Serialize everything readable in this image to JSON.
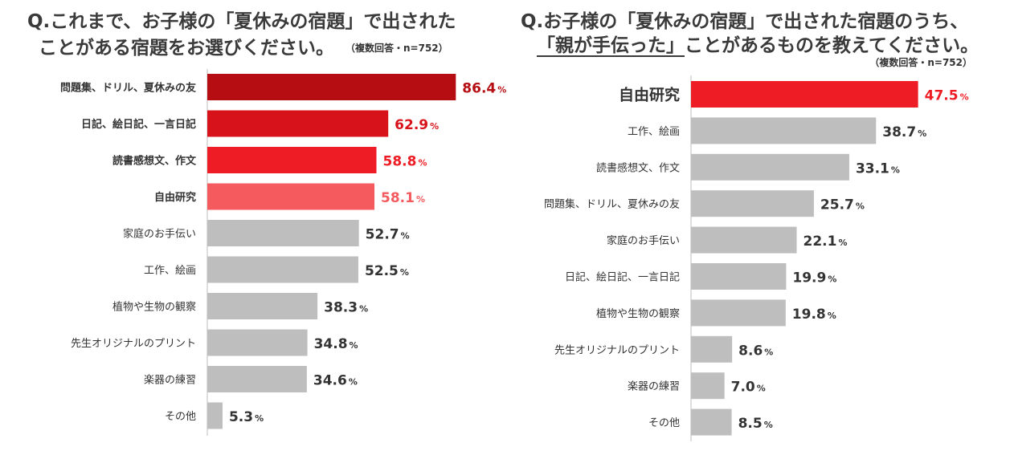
{
  "chart_data": [
    {
      "type": "bar",
      "orientation": "horizontal",
      "title_line1": "Q.これまで、お子様の「夏休みの宿題」で出された",
      "title_line2": "ことがある宿題をお選びください。",
      "note": "（複数回答・n=752）",
      "unit": "%",
      "categories": [
        "問題集、ドリル、夏休みの友",
        "日記、絵日記、一言日記",
        "読書感想文、作文",
        "自由研究",
        "家庭のお手伝い",
        "工作、絵画",
        "植物や生物の観察",
        "先生オリジナルのプリント",
        "楽器の練習",
        "その他"
      ],
      "values": [
        86.4,
        62.9,
        58.8,
        58.1,
        52.7,
        52.5,
        38.3,
        34.8,
        34.6,
        5.3
      ],
      "value_labels": [
        "86.4",
        "62.9",
        "58.8",
        "58.1",
        "52.7",
        "52.5",
        "38.3",
        "34.8",
        "34.6",
        "5.3"
      ],
      "bar_colors": [
        "#b50d12",
        "#d8121a",
        "#ee1c24",
        "#f45a5e",
        "#bebebe",
        "#bebebe",
        "#bebebe",
        "#bebebe",
        "#bebebe",
        "#bebebe"
      ],
      "label_colors": [
        "#b50d12",
        "#d8121a",
        "#ee1c24",
        "#f45a5e",
        "#333333",
        "#333333",
        "#333333",
        "#333333",
        "#333333",
        "#333333"
      ],
      "highlight": [
        true,
        true,
        true,
        true,
        false,
        false,
        false,
        false,
        false,
        false
      ],
      "xlim": [
        0,
        100
      ],
      "grid": false
    },
    {
      "type": "bar",
      "orientation": "horizontal",
      "title_line1": "Q.お子様の「夏休みの宿題」で出された宿題のうち、",
      "title_line2_underlined": "「親が手伝った」",
      "title_line2_rest": "ことがあるものを教えてください。",
      "note": "（複数回答・n=752）",
      "unit": "%",
      "categories": [
        "自由研究",
        "工作、絵画",
        "読書感想文、作文",
        "問題集、ドリル、夏休みの友",
        "家庭のお手伝い",
        "日記、絵日記、一言日記",
        "植物や生物の観察",
        "先生オリジナルのプリント",
        "楽器の練習",
        "その他"
      ],
      "values": [
        47.5,
        38.7,
        33.1,
        25.7,
        22.1,
        19.9,
        19.8,
        8.6,
        7.0,
        8.5
      ],
      "value_labels": [
        "47.5",
        "38.7",
        "33.1",
        "25.7",
        "22.1",
        "19.9",
        "19.8",
        "8.6",
        "7.0",
        "8.5"
      ],
      "bar_colors": [
        "#ee1c24",
        "#bebebe",
        "#bebebe",
        "#bebebe",
        "#bebebe",
        "#bebebe",
        "#bebebe",
        "#bebebe",
        "#bebebe",
        "#bebebe"
      ],
      "label_colors": [
        "#ee1c24",
        "#333333",
        "#333333",
        "#333333",
        "#333333",
        "#333333",
        "#333333",
        "#333333",
        "#333333",
        "#333333"
      ],
      "highlight": [
        true,
        false,
        false,
        false,
        false,
        false,
        false,
        false,
        false,
        false
      ],
      "xlim": [
        0,
        100
      ],
      "grid": false
    }
  ]
}
